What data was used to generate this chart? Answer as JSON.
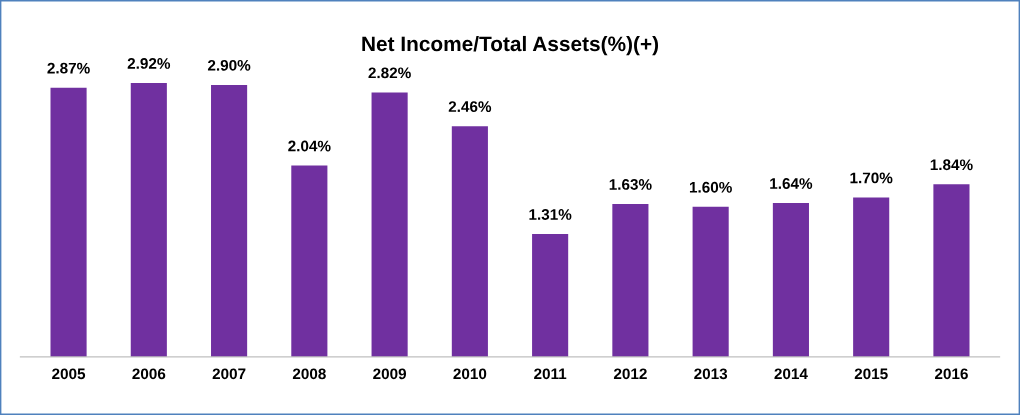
{
  "chart_data": {
    "type": "bar",
    "title": "Net Income/Total Assets(%)(+)",
    "categories": [
      "2005",
      "2006",
      "2007",
      "2008",
      "2009",
      "2010",
      "2011",
      "2012",
      "2013",
      "2014",
      "2015",
      "2016"
    ],
    "values": [
      2.87,
      2.92,
      2.9,
      2.04,
      2.82,
      2.46,
      1.31,
      1.63,
      1.6,
      1.64,
      1.7,
      1.84
    ],
    "value_labels": [
      "2.87%",
      "2.92%",
      "2.90%",
      "2.04%",
      "2.82%",
      "2.46%",
      "1.31%",
      "1.63%",
      "1.60%",
      "1.64%",
      "1.70%",
      "1.84%"
    ],
    "color": "#7030a0",
    "grid": false,
    "legend": false
  }
}
